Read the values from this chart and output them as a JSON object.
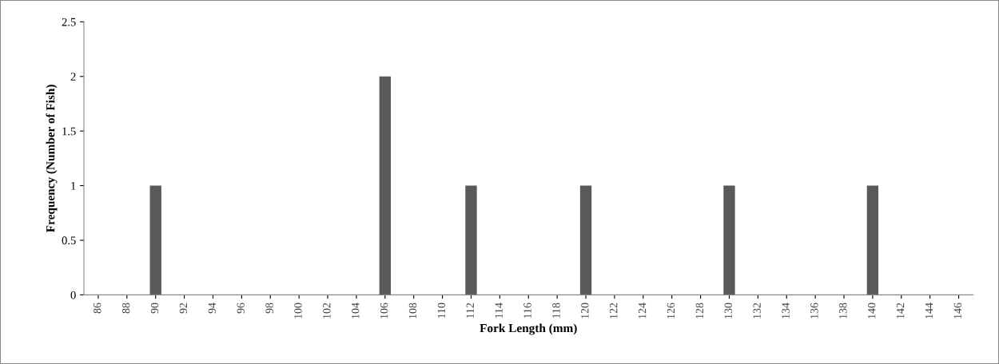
{
  "chart_data": {
    "type": "bar",
    "xlabel": "Fork Length (mm)",
    "ylabel": "Frequency (Number of Fish)",
    "categories": [
      "86",
      "88",
      "90",
      "92",
      "94",
      "96",
      "98",
      "100",
      "102",
      "104",
      "106",
      "108",
      "110",
      "112",
      "114",
      "116",
      "118",
      "120",
      "122",
      "124",
      "126",
      "128",
      "130",
      "132",
      "134",
      "136",
      "138",
      "140",
      "142",
      "144",
      "146"
    ],
    "values": [
      0,
      0,
      1,
      0,
      0,
      0,
      0,
      0,
      0,
      0,
      2,
      0,
      0,
      1,
      0,
      0,
      0,
      1,
      0,
      0,
      0,
      0,
      1,
      0,
      0,
      0,
      0,
      1,
      0,
      0,
      0
    ],
    "color": "#595959",
    "ylim": [
      0,
      2.5
    ],
    "yticks": [
      0,
      0.5,
      1,
      1.5,
      2,
      2.5
    ],
    "grid": false,
    "legend": false
  }
}
